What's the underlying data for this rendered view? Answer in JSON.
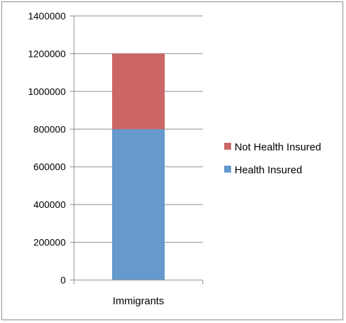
{
  "chart_data": {
    "type": "bar",
    "stacked": true,
    "categories": [
      "Immigrants"
    ],
    "series": [
      {
        "name": "Health Insured",
        "values": [
          800000
        ],
        "color": "#6699cc"
      },
      {
        "name": "Not Health Insured",
        "values": [
          400000
        ],
        "color": "#cc6666"
      }
    ],
    "ylim": [
      0,
      1400000
    ],
    "yticks": [
      0,
      200000,
      400000,
      600000,
      800000,
      1000000,
      1200000,
      1400000
    ],
    "ytick_labels": [
      "0",
      "200000",
      "400000",
      "600000",
      "800000",
      "1000000",
      "1200000",
      "1400000"
    ],
    "grid": true,
    "legend": "right",
    "legend_order": [
      "Not Health Insured",
      "Health Insured"
    ]
  },
  "colors": {
    "grid": "#8c8c8c",
    "axis": "#8c8c8c",
    "border": "#8c8c8c"
  }
}
